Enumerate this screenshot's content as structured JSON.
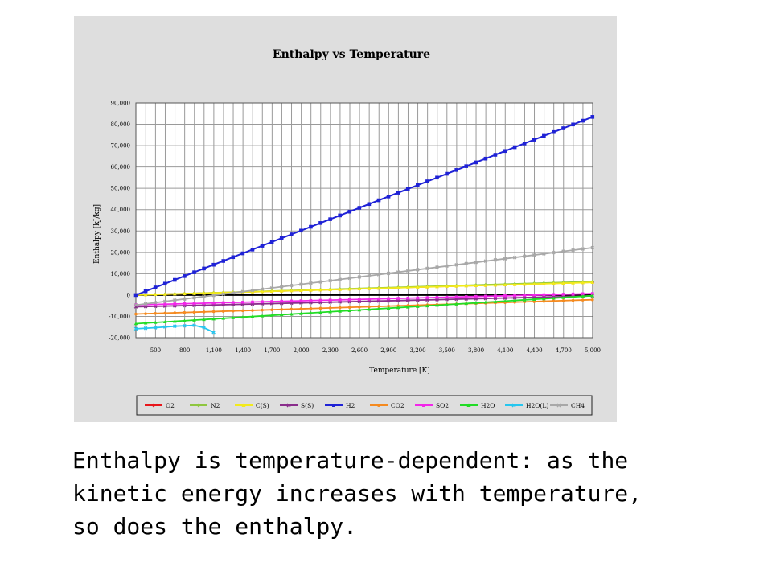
{
  "chart_data": {
    "type": "line",
    "title": "Enthalpy vs Temperature",
    "xlabel": "Temperature [K]",
    "ylabel": "Enthalpy [kJ/kg]",
    "xlim": [
      298,
      5000
    ],
    "ylim": [
      -20000,
      90000
    ],
    "x_tick_labels": [
      "500",
      "800",
      "1,100",
      "1,400",
      "1,700",
      "2,000",
      "2,300",
      "2,600",
      "2,900",
      "3,200",
      "3,500",
      "3,800",
      "4,100",
      "4,400",
      "4,700",
      "5,000"
    ],
    "y_tick_labels": [
      "90,000",
      "80,000",
      "70,000",
      "60,000",
      "50,000",
      "40,000",
      "30,000",
      "20,000",
      "10,000",
      "0",
      "-10,000",
      "-20,000"
    ],
    "grid": true,
    "legend_position": "bottom",
    "series": [
      {
        "name": "O2",
        "color": "#e8161b",
        "marker": "diamond",
        "points": [
          [
            298,
            0
          ],
          [
            5000,
            6000
          ]
        ]
      },
      {
        "name": "N2",
        "color": "#8ec63f",
        "marker": "diamond",
        "points": [
          [
            298,
            0
          ],
          [
            5000,
            6300
          ]
        ]
      },
      {
        "name": "C(S)",
        "color": "#f2ea1c",
        "marker": "triangle",
        "points": [
          [
            298,
            0
          ],
          [
            5000,
            5900
          ]
        ]
      },
      {
        "name": "S(S)",
        "color": "#8a2d8c",
        "marker": "x",
        "points": [
          [
            298,
            -5500
          ],
          [
            5000,
            -400
          ]
        ]
      },
      {
        "name": "H2",
        "color": "#1f22d6",
        "marker": "square",
        "points": [
          [
            298,
            0
          ],
          [
            5000,
            83500
          ]
        ]
      },
      {
        "name": "CO2",
        "color": "#f58a1f",
        "marker": "circle",
        "points": [
          [
            298,
            -8900
          ],
          [
            5000,
            -2200
          ]
        ]
      },
      {
        "name": "SO2",
        "color": "#f227e9",
        "marker": "square",
        "points": [
          [
            298,
            -4600
          ],
          [
            5000,
            700
          ]
        ]
      },
      {
        "name": "H2O",
        "color": "#22dc26",
        "marker": "triangle",
        "points": [
          [
            298,
            -13400
          ],
          [
            5000,
            -300
          ]
        ]
      },
      {
        "name": "H2O(L)",
        "color": "#26c6ef",
        "marker": "x",
        "points": [
          [
            298,
            -15800
          ],
          [
            500,
            -15300
          ],
          [
            700,
            -14600
          ],
          [
            900,
            -14200
          ],
          [
            1000,
            -15300
          ],
          [
            1100,
            -17500
          ]
        ]
      },
      {
        "name": "CH4",
        "color": "#a8a8a8",
        "marker": "x",
        "points": [
          [
            298,
            -4700
          ],
          [
            5000,
            22200
          ]
        ]
      }
    ]
  },
  "caption": {
    "line1": "Enthalpy is temperature-dependent: as the",
    "line2": "kinetic energy increases with temperature,",
    "line3": "so does the enthalpy."
  }
}
